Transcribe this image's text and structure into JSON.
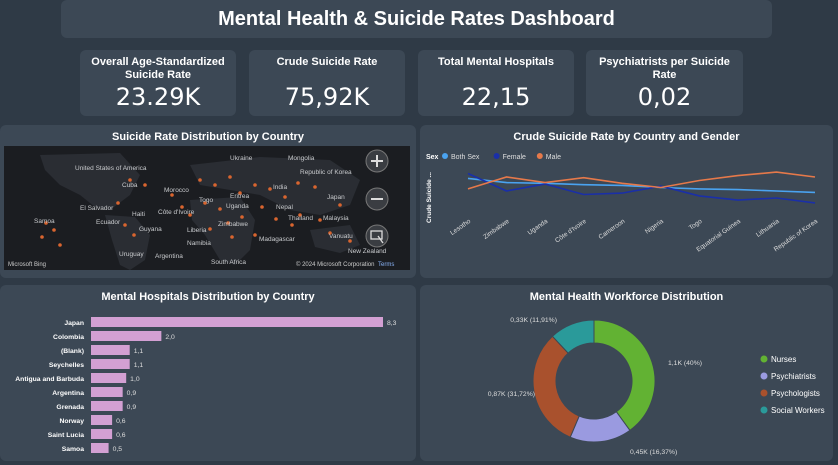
{
  "header": {
    "title": "Mental Health & Suicide Rates Dashboard"
  },
  "cards": [
    {
      "label": "Overall Age-Standardized Suicide Rate",
      "value": "23.29K"
    },
    {
      "label": "Crude Suicide Rate",
      "value": "75,92K"
    },
    {
      "label": "Total Mental Hospitals",
      "value": "22,15"
    },
    {
      "label": "Psychiatrists per Suicide Rate",
      "value": "0,02"
    }
  ],
  "map": {
    "title": "Suicide Rate Distribution by Country",
    "labels": [
      "Ukraine",
      "Mongolia",
      "United States of America",
      "Republic of Korea",
      "Cuba",
      "Morocco",
      "India",
      "Japan",
      "El Salvador",
      "Haiti",
      "Côte d'Ivoire",
      "Togo",
      "Uganda",
      "Eritrea",
      "Nepal",
      "Samoa",
      "Ecuador",
      "Guyana",
      "Liberia",
      "Zimbabwe",
      "Thailand",
      "Malaysia",
      "Namibia",
      "Madagascar",
      "Vanuatu",
      "Uruguay",
      "Argentina",
      "South Africa",
      "New Zealand"
    ],
    "attribution": "© 2024 Microsoft Corporation",
    "terms": "Terms",
    "brand": "Microsoft Bing"
  },
  "line_chart": {
    "title": "Crude Suicide Rate by Country and Gender",
    "legend_title": "Sex",
    "y_axis_label": "Crude Suicide ...",
    "colors": {
      "Both Sex": "#4aa3f0",
      "Female": "#1a2fa8",
      "Male": "#e6794a"
    }
  },
  "bar_chart": {
    "title": "Mental Hospitals Distribution by Country",
    "color": "#d3a0d3"
  },
  "donut": {
    "title": "Mental Health Workforce Distribution",
    "slices": [
      {
        "name": "Nurses",
        "label": "1,1K (40%)",
        "value": 40,
        "color": "#62b233"
      },
      {
        "name": "Psychiatrists",
        "label": "0,45K (16,37%)",
        "value": 16.37,
        "color": "#9a9ae0"
      },
      {
        "name": "Psychologists",
        "label": "0,87K (31,72%)",
        "value": 31.72,
        "color": "#a9512d"
      },
      {
        "name": "Social Workers",
        "label": "0,33K (11,91%)",
        "value": 11.91,
        "color": "#2a9a9a"
      }
    ]
  },
  "chart_data": [
    {
      "type": "line",
      "title": "Crude Suicide Rate by Country and Gender",
      "ylabel": "Crude Suicide ...",
      "categories": [
        "Lesotho",
        "Zimbabwe",
        "Uganda",
        "Côte d'Ivoire",
        "Cameroon",
        "Nigeria",
        "Togo",
        "Equatorial Guinea",
        "Lithuania",
        "Republic of Korea"
      ],
      "series": [
        {
          "name": "Both Sex",
          "values": [
            73,
            67,
            66,
            64,
            63,
            60,
            58,
            57,
            55,
            53
          ]
        },
        {
          "name": "Female",
          "values": [
            80,
            55,
            65,
            50,
            52,
            62,
            48,
            42,
            45,
            38
          ]
        },
        {
          "name": "Male",
          "values": [
            58,
            75,
            67,
            74,
            66,
            60,
            70,
            77,
            82,
            75
          ]
        }
      ],
      "legend": "top-left",
      "grid": false
    },
    {
      "type": "bar",
      "orientation": "horizontal",
      "title": "Mental Hospitals Distribution by Country",
      "categories": [
        "Japan",
        "Colombia",
        "(Blank)",
        "Seychelles",
        "Antigua and Barbuda",
        "Argentina",
        "Grenada",
        "Norway",
        "Saint Lucia",
        "Samoa"
      ],
      "values": [
        8.3,
        2.0,
        1.1,
        1.1,
        1.0,
        0.9,
        0.9,
        0.6,
        0.6,
        0.5
      ],
      "value_labels": [
        "8,3",
        "2,0",
        "1,1",
        "1,1",
        "1,0",
        "0,9",
        "0,9",
        "0,6",
        "0,6",
        "0,5"
      ]
    },
    {
      "type": "pie",
      "title": "Mental Health Workforce Distribution",
      "categories": [
        "Nurses",
        "Psychiatrists",
        "Psychologists",
        "Social Workers"
      ],
      "values": [
        40,
        16.37,
        31.72,
        11.91
      ],
      "labels": [
        "1,1K (40%)",
        "0,45K (16,37%)",
        "0,87K (31,72%)",
        "0,33K (11,91%)"
      ],
      "legend": "right"
    }
  ]
}
